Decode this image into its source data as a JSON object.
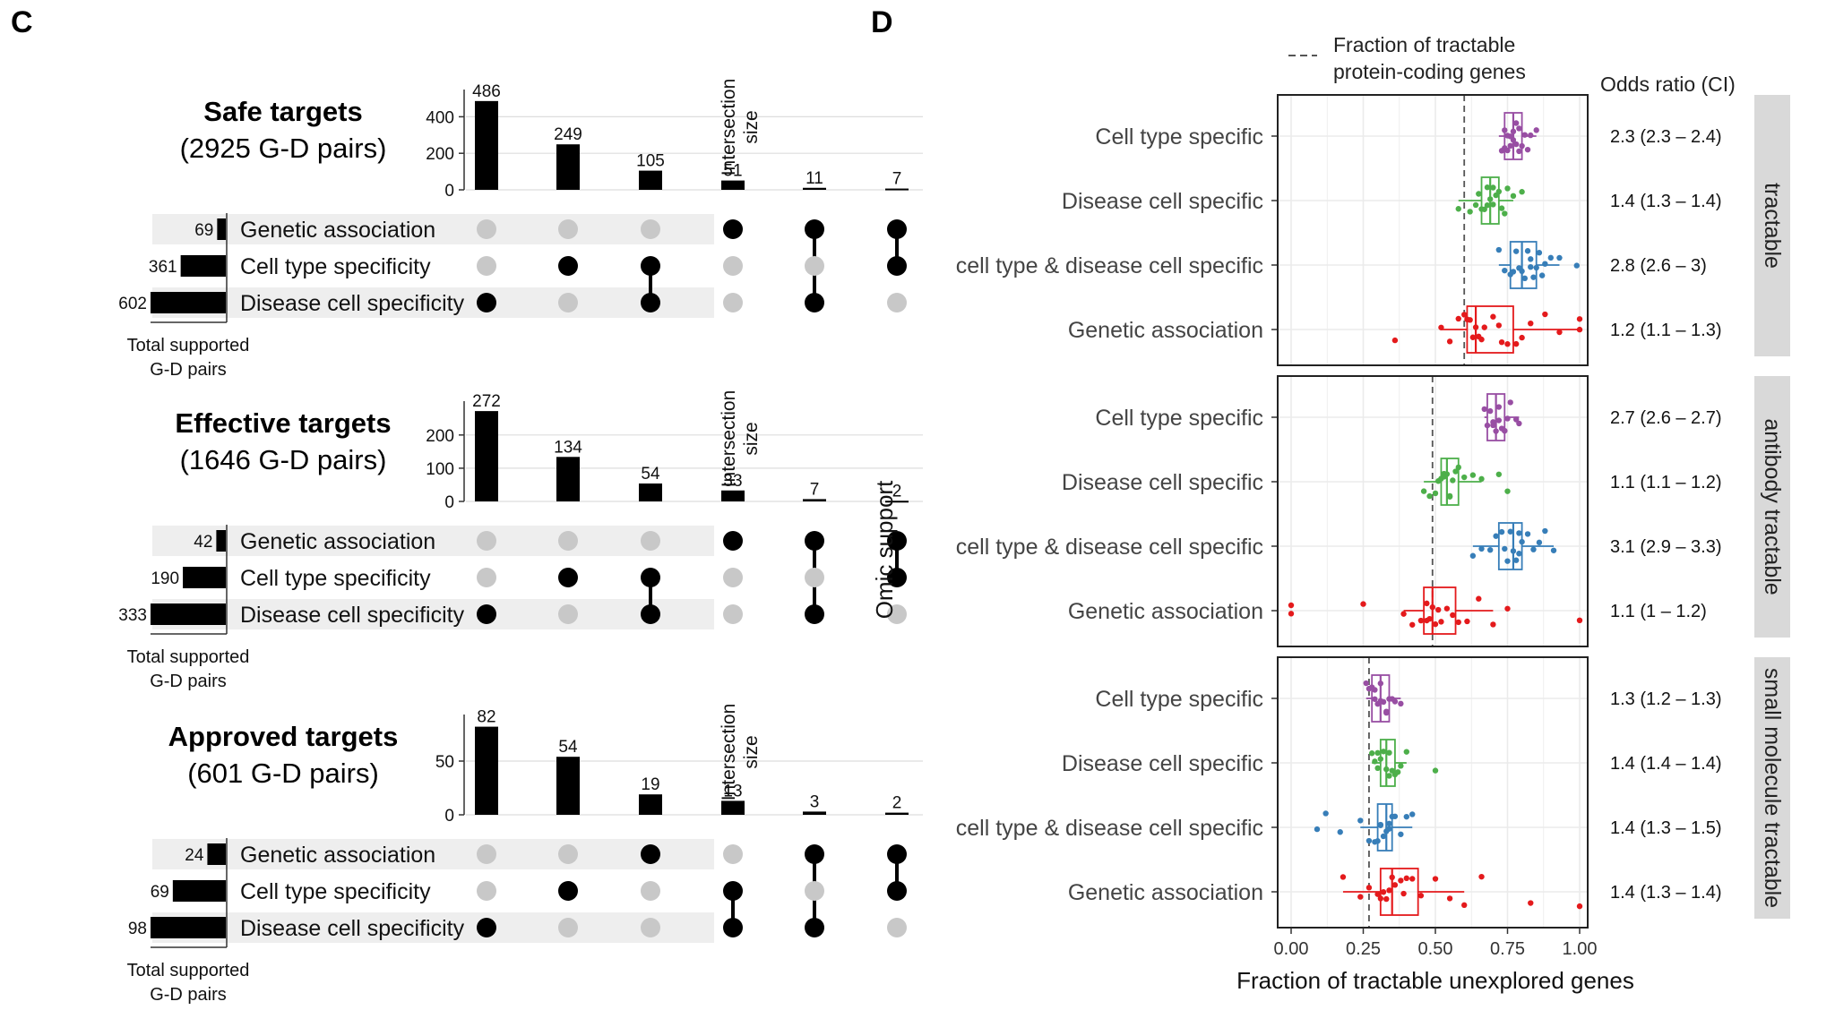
{
  "panel_c": {
    "label": "C",
    "total_label_1": "Total supported",
    "total_label_2": "G-D pairs",
    "intersection_label_1": "Intersection",
    "intersection_label_2": "size",
    "set_names": [
      "Genetic association",
      "Cell type specificity",
      "Disease cell specificity"
    ]
  },
  "panel_d": {
    "label": "D",
    "legend_line1": "Fraction of tractable",
    "legend_line2": "protein-coding genes",
    "odds_header": "Odds ratio (CI)"
  },
  "colors": {
    "bar": "#000000",
    "dot_on": "#000000",
    "dot_off": "#c8c8c8",
    "stripe": "#eeeeee",
    "strip_bg": "#d9d9d9",
    "grid": "#ebebeb",
    "cell_type_specific": "#984ea3",
    "disease_cell_specific": "#4daf4a",
    "combined": "#377eb8",
    "genetic_association": "#e41a1c"
  },
  "chart_data": [
    {
      "type": "bar",
      "subtype": "upset",
      "title": "Safe targets",
      "subtitle": "(2925 G-D pairs)",
      "ylim": [
        0,
        500
      ],
      "yticks": [
        0,
        200,
        400
      ],
      "values": [
        486,
        249,
        105,
        51,
        11,
        7
      ],
      "membership": [
        [
          2
        ],
        [
          1
        ],
        [
          1,
          2
        ],
        [
          0
        ],
        [
          0,
          2
        ],
        [
          0,
          1
        ]
      ],
      "set_sizes": [
        69,
        361,
        602
      ],
      "set_max": 602
    },
    {
      "type": "bar",
      "subtype": "upset",
      "title": "Effective targets",
      "subtitle": "(1646 G-D pairs)",
      "ylim": [
        0,
        275
      ],
      "yticks": [
        0,
        100,
        200
      ],
      "values": [
        272,
        134,
        54,
        33,
        7,
        2
      ],
      "membership": [
        [
          2
        ],
        [
          1
        ],
        [
          1,
          2
        ],
        [
          0
        ],
        [
          0,
          2
        ],
        [
          0,
          1
        ]
      ],
      "set_sizes": [
        42,
        190,
        333
      ],
      "set_max": 333
    },
    {
      "type": "bar",
      "subtype": "upset",
      "title": "Approved targets",
      "subtitle": "(601 G-D pairs)",
      "ylim": [
        0,
        85
      ],
      "yticks": [
        0,
        50
      ],
      "values": [
        82,
        54,
        19,
        13,
        3,
        2
      ],
      "membership": [
        [
          2
        ],
        [
          1
        ],
        [
          0
        ],
        [
          1,
          2
        ],
        [
          0,
          2
        ],
        [
          0,
          1
        ]
      ],
      "set_sizes": [
        24,
        69,
        98
      ],
      "set_max": 98
    },
    {
      "type": "scatter",
      "subtype": "boxplot-jitter",
      "xlabel": "Fraction of tractable unexplored genes",
      "ylabel": "Omic support",
      "xlim": [
        0,
        1
      ],
      "xticks": [
        "0.00",
        "0.25",
        "0.50",
        "0.75",
        "1.00"
      ],
      "categories": [
        "Cell type specific",
        "Disease cell specific",
        "cell type & disease cell specific",
        "Genetic association"
      ],
      "facets": [
        {
          "strip": "tractable",
          "reference": 0.6,
          "rows": [
            {
              "category": "Cell type specific",
              "color_key": "cell_type_specific",
              "q1": 0.74,
              "median": 0.77,
              "q3": 0.8,
              "wmin": 0.72,
              "wmax": 0.85,
              "odds": "2.3 (2.3 – 2.4)",
              "points": [
                0.73,
                0.74,
                0.75,
                0.76,
                0.76,
                0.77,
                0.78,
                0.78,
                0.79,
                0.8,
                0.81,
                0.82,
                0.74,
                0.75,
                0.77,
                0.79,
                0.83,
                0.85
              ]
            },
            {
              "category": "Disease cell specific",
              "color_key": "disease_cell_specific",
              "q1": 0.66,
              "median": 0.69,
              "q3": 0.72,
              "wmin": 0.58,
              "wmax": 0.77,
              "odds": "1.4 (1.3 – 1.4)",
              "points": [
                0.58,
                0.62,
                0.64,
                0.66,
                0.67,
                0.68,
                0.69,
                0.7,
                0.71,
                0.72,
                0.73,
                0.75,
                0.65,
                0.68,
                0.7,
                0.74,
                0.77,
                0.8
              ]
            },
            {
              "category": "cell type & disease cell specific",
              "color_key": "combined",
              "q1": 0.76,
              "median": 0.8,
              "q3": 0.85,
              "wmin": 0.72,
              "wmax": 0.93,
              "odds": "2.8 (2.6 – 3)",
              "points": [
                0.72,
                0.74,
                0.76,
                0.78,
                0.79,
                0.8,
                0.81,
                0.82,
                0.83,
                0.84,
                0.85,
                0.87,
                0.88,
                0.9,
                0.93,
                0.99,
                0.77,
                0.83,
                0.86
              ]
            },
            {
              "category": "Genetic association",
              "color_key": "genetic_association",
              "q1": 0.61,
              "median": 0.64,
              "q3": 0.77,
              "wmin": 0.52,
              "wmax": 1.0,
              "odds": "1.2 (1.1 – 1.3)",
              "points": [
                0.36,
                0.52,
                0.55,
                0.58,
                0.6,
                0.62,
                0.63,
                0.64,
                0.65,
                0.67,
                0.7,
                0.72,
                0.75,
                0.78,
                0.8,
                0.83,
                0.88,
                0.93,
                1.0,
                1.0,
                0.61,
                0.66,
                0.73
              ]
            }
          ]
        },
        {
          "strip": "antibody tractable",
          "reference": 0.49,
          "rows": [
            {
              "category": "Cell type specific",
              "color_key": "cell_type_specific",
              "q1": 0.68,
              "median": 0.71,
              "q3": 0.74,
              "wmin": 0.67,
              "wmax": 0.79,
              "odds": "2.7 (2.6 – 2.7)",
              "points": [
                0.67,
                0.68,
                0.69,
                0.7,
                0.71,
                0.72,
                0.73,
                0.74,
                0.75,
                0.76,
                0.78,
                0.79,
                0.7,
                0.72,
                0.74
              ]
            },
            {
              "category": "Disease cell specific",
              "color_key": "disease_cell_specific",
              "q1": 0.52,
              "median": 0.54,
              "q3": 0.58,
              "wmin": 0.46,
              "wmax": 0.66,
              "odds": "1.1 (1.1 – 1.2)",
              "points": [
                0.46,
                0.48,
                0.5,
                0.51,
                0.52,
                0.53,
                0.54,
                0.55,
                0.56,
                0.57,
                0.58,
                0.6,
                0.63,
                0.66,
                0.72,
                0.75,
                0.53,
                0.55
              ]
            },
            {
              "category": "cell type & disease cell specific",
              "color_key": "combined",
              "q1": 0.72,
              "median": 0.77,
              "q3": 0.8,
              "wmin": 0.63,
              "wmax": 0.91,
              "odds": "3.1 (2.9 – 3.3)",
              "points": [
                0.63,
                0.66,
                0.69,
                0.71,
                0.73,
                0.75,
                0.76,
                0.77,
                0.78,
                0.79,
                0.8,
                0.82,
                0.84,
                0.86,
                0.88,
                0.91,
                0.74,
                0.79
              ]
            },
            {
              "category": "Genetic association",
              "color_key": "genetic_association",
              "q1": 0.46,
              "median": 0.49,
              "q3": 0.57,
              "wmin": 0.39,
              "wmax": 0.7,
              "odds": "1.1 (1 – 1.2)",
              "points": [
                0.0,
                0.0,
                0.25,
                0.39,
                0.42,
                0.45,
                0.47,
                0.48,
                0.49,
                0.5,
                0.52,
                0.54,
                0.56,
                0.58,
                0.61,
                0.65,
                0.7,
                0.75,
                1.0,
                0.47,
                0.51
              ]
            }
          ]
        },
        {
          "strip": "small molecule tractable",
          "reference": 0.27,
          "rows": [
            {
              "category": "Cell type specific",
              "color_key": "cell_type_specific",
              "q1": 0.28,
              "median": 0.31,
              "q3": 0.34,
              "wmin": 0.26,
              "wmax": 0.38,
              "odds": "1.3 (1.2 – 1.3)",
              "points": [
                0.26,
                0.27,
                0.28,
                0.29,
                0.3,
                0.31,
                0.32,
                0.33,
                0.34,
                0.35,
                0.36,
                0.38,
                0.29,
                0.31,
                0.33
              ]
            },
            {
              "category": "Disease cell specific",
              "color_key": "disease_cell_specific",
              "q1": 0.31,
              "median": 0.33,
              "q3": 0.36,
              "wmin": 0.28,
              "wmax": 0.4,
              "odds": "1.4 (1.4 – 1.4)",
              "points": [
                0.28,
                0.29,
                0.3,
                0.31,
                0.32,
                0.33,
                0.34,
                0.35,
                0.36,
                0.37,
                0.38,
                0.4,
                0.5,
                0.3,
                0.34
              ]
            },
            {
              "category": "cell type & disease cell specific",
              "color_key": "combined",
              "q1": 0.3,
              "median": 0.33,
              "q3": 0.35,
              "wmin": 0.24,
              "wmax": 0.42,
              "odds": "1.4 (1.3 – 1.5)",
              "points": [
                0.09,
                0.12,
                0.17,
                0.24,
                0.27,
                0.29,
                0.3,
                0.31,
                0.32,
                0.33,
                0.34,
                0.35,
                0.36,
                0.38,
                0.4,
                0.42,
                0.31,
                0.34
              ]
            },
            {
              "category": "Genetic association",
              "color_key": "genetic_association",
              "q1": 0.31,
              "median": 0.35,
              "q3": 0.44,
              "wmin": 0.18,
              "wmax": 0.6,
              "odds": "1.4 (1.3 – 1.4)",
              "points": [
                0.18,
                0.24,
                0.27,
                0.3,
                0.31,
                0.32,
                0.33,
                0.35,
                0.36,
                0.38,
                0.4,
                0.42,
                0.45,
                0.5,
                0.55,
                0.6,
                0.66,
                0.83,
                1.0,
                0.34,
                0.39
              ]
            }
          ]
        }
      ]
    }
  ]
}
